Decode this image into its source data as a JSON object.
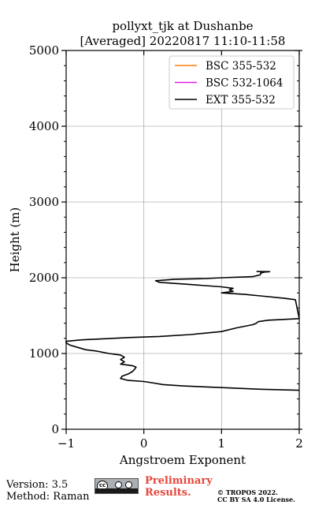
{
  "chart_data": {
    "type": "line",
    "title": [
      "pollyxt_tjk at Dushanbe",
      "[Averaged] 20220817 11:10-11:58"
    ],
    "xlabel": "Angstroem Exponent",
    "ylabel": "Height (m)",
    "xlim": [
      -1,
      2
    ],
    "ylim": [
      0,
      5000
    ],
    "xticks": [
      -1,
      0,
      1,
      2
    ],
    "xtick_labels": [
      "−1",
      "0",
      "1",
      "2"
    ],
    "yticks": [
      0,
      1000,
      2000,
      3000,
      4000,
      5000
    ],
    "ytick_labels": [
      "0",
      "1000",
      "2000",
      "3000",
      "4000",
      "5000"
    ],
    "grid": true,
    "legend_position": "top-right",
    "series": [
      {
        "name": "BSC 355-532",
        "color": "#ff7f0e",
        "points": []
      },
      {
        "name": "BSC 532-1064",
        "color": "#e41ae4",
        "points": []
      },
      {
        "name": "EXT 355-532",
        "color": "#000000",
        "points": [
          [
            2.0,
            515
          ],
          [
            1.5,
            528
          ],
          [
            1.0,
            550
          ],
          [
            0.5,
            572
          ],
          [
            0.25,
            590
          ],
          [
            0.1,
            615
          ],
          [
            0.0,
            630
          ],
          [
            -0.2,
            645
          ],
          [
            -0.3,
            670
          ],
          [
            -0.28,
            700
          ],
          [
            -0.2,
            730
          ],
          [
            -0.15,
            760
          ],
          [
            -0.12,
            790
          ],
          [
            -0.1,
            820
          ],
          [
            -0.15,
            840
          ],
          [
            -0.3,
            860
          ],
          [
            -0.25,
            890
          ],
          [
            -0.3,
            920
          ],
          [
            -0.25,
            950
          ],
          [
            -0.3,
            980
          ],
          [
            -0.45,
            1000
          ],
          [
            -0.6,
            1030
          ],
          [
            -0.75,
            1050
          ],
          [
            -0.85,
            1080
          ],
          [
            -0.95,
            1110
          ],
          [
            -1.0,
            1140
          ],
          [
            -1.0,
            1160
          ],
          [
            -0.8,
            1180
          ],
          [
            -0.5,
            1195
          ],
          [
            -0.2,
            1210
          ],
          [
            0.2,
            1225
          ],
          [
            0.6,
            1250
          ],
          [
            1.0,
            1290
          ],
          [
            1.2,
            1340
          ],
          [
            1.4,
            1380
          ],
          [
            1.45,
            1400
          ],
          [
            1.47,
            1420
          ],
          [
            1.6,
            1440
          ],
          [
            1.8,
            1450
          ],
          [
            2.0,
            1460
          ],
          [
            1.95,
            1710
          ],
          [
            1.8,
            1730
          ],
          [
            1.5,
            1760
          ],
          [
            1.3,
            1780
          ],
          [
            1.0,
            1800
          ],
          [
            1.15,
            1820
          ],
          [
            1.1,
            1840
          ],
          [
            1.15,
            1860
          ],
          [
            1.0,
            1880
          ],
          [
            0.6,
            1910
          ],
          [
            0.2,
            1940
          ],
          [
            0.15,
            1960
          ],
          [
            0.4,
            1980
          ],
          [
            0.8,
            1990
          ],
          [
            1.0,
            2000
          ],
          [
            1.4,
            2015
          ],
          [
            1.5,
            2040
          ],
          [
            1.5,
            2060
          ],
          [
            1.55,
            2075
          ],
          [
            1.62,
            2080
          ],
          [
            1.45,
            2082
          ]
        ]
      }
    ]
  },
  "footer": {
    "version": "Version: 3.5",
    "method": "Method: Raman",
    "preliminary_line1": "Preliminary",
    "preliminary_line2": "Results.",
    "copyright_line1": "© TROPOS 2022.",
    "copyright_line2": "CC BY SA 4.0 License.",
    "license_badge": "cc",
    "license_icon": "cc-by-sa-badge"
  }
}
